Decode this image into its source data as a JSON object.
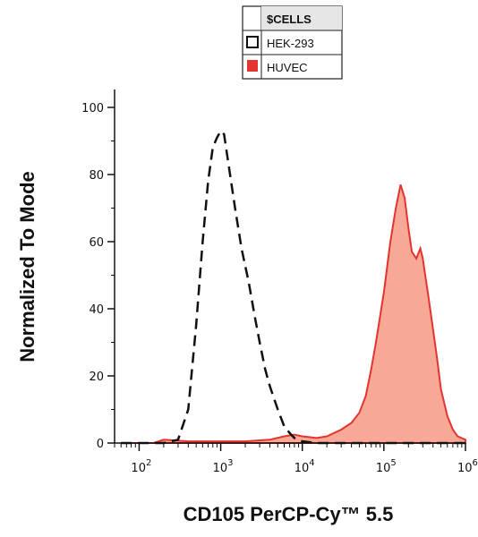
{
  "chart_data": {
    "type": "area",
    "xlabel": "CD105 PerCP-Cy™ 5.5",
    "ylabel": "Normalized To Mode",
    "x_scale": "log",
    "xlim": [
      50,
      1000000
    ],
    "ylim": [
      0,
      103
    ],
    "y_ticks": [
      0,
      20,
      40,
      60,
      80,
      100
    ],
    "x_ticks": [
      {
        "value": 100,
        "base": "10",
        "exp": "2"
      },
      {
        "value": 1000,
        "base": "10",
        "exp": "3"
      },
      {
        "value": 10000,
        "base": "10",
        "exp": "4"
      },
      {
        "value": 100000,
        "base": "10",
        "exp": "5"
      },
      {
        "value": 1000000,
        "base": "10",
        "exp": "6"
      }
    ],
    "grid": false,
    "legend": {
      "position": "top-center",
      "header": "$CELLS",
      "entries": [
        "HEK-293",
        "HUVEC"
      ]
    },
    "series": [
      {
        "name": "HEK-293",
        "style": "dashed-outline",
        "color": "#111111",
        "points": [
          [
            60,
            0
          ],
          [
            200,
            0
          ],
          [
            300,
            1
          ],
          [
            400,
            10
          ],
          [
            500,
            35
          ],
          [
            600,
            60
          ],
          [
            700,
            78
          ],
          [
            800,
            88
          ],
          [
            900,
            91
          ],
          [
            1000,
            93
          ],
          [
            1100,
            92
          ],
          [
            1300,
            80
          ],
          [
            1500,
            70
          ],
          [
            1800,
            58
          ],
          [
            2200,
            48
          ],
          [
            2600,
            38
          ],
          [
            3000,
            30
          ],
          [
            3500,
            22
          ],
          [
            4000,
            17
          ],
          [
            5000,
            10
          ],
          [
            6000,
            5
          ],
          [
            7000,
            3
          ],
          [
            8000,
            1.5
          ],
          [
            9000,
            1
          ],
          [
            10000,
            0.5
          ],
          [
            15000,
            0
          ],
          [
            1000000,
            0
          ]
        ]
      },
      {
        "name": "HUVEC",
        "style": "filled",
        "color": "#e3342f",
        "fill": "#f8a896",
        "points": [
          [
            60,
            0
          ],
          [
            150,
            0
          ],
          [
            200,
            1
          ],
          [
            400,
            0.5
          ],
          [
            2000,
            0.5
          ],
          [
            4000,
            1
          ],
          [
            6000,
            2
          ],
          [
            8000,
            2.5
          ],
          [
            10000,
            2
          ],
          [
            15000,
            1.5
          ],
          [
            20000,
            2
          ],
          [
            30000,
            4
          ],
          [
            40000,
            6
          ],
          [
            50000,
            9
          ],
          [
            60000,
            14
          ],
          [
            70000,
            22
          ],
          [
            80000,
            30
          ],
          [
            100000,
            45
          ],
          [
            120000,
            60
          ],
          [
            140000,
            70
          ],
          [
            160000,
            77
          ],
          [
            180000,
            73
          ],
          [
            200000,
            64
          ],
          [
            220000,
            57
          ],
          [
            250000,
            55
          ],
          [
            280000,
            58
          ],
          [
            300000,
            55
          ],
          [
            350000,
            44
          ],
          [
            400000,
            34
          ],
          [
            450000,
            25
          ],
          [
            500000,
            16
          ],
          [
            600000,
            8
          ],
          [
            700000,
            4
          ],
          [
            800000,
            2
          ],
          [
            1000000,
            1
          ]
        ]
      }
    ]
  }
}
